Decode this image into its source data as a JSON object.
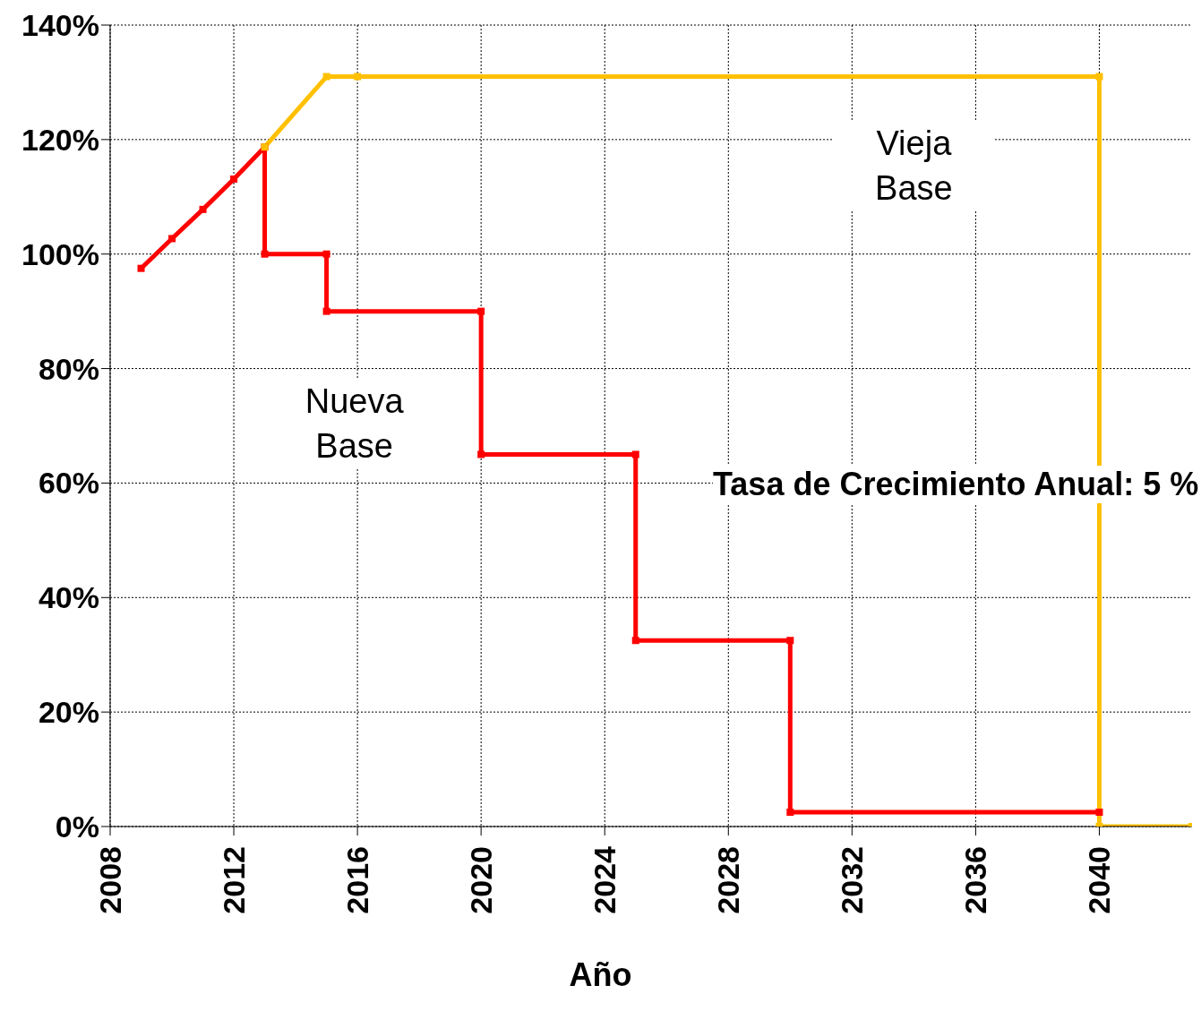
{
  "chart_data": {
    "type": "line",
    "xlabel": "Año",
    "xlim": [
      2008,
      2043
    ],
    "xticks": [
      2008,
      2012,
      2016,
      2020,
      2024,
      2028,
      2032,
      2036,
      2040
    ],
    "ylim": [
      0,
      140
    ],
    "yticks": [
      {
        "value": 0,
        "label": "0%"
      },
      {
        "value": 20,
        "label": "20%"
      },
      {
        "value": 40,
        "label": "40%"
      },
      {
        "value": 60,
        "label": "60%"
      },
      {
        "value": 80,
        "label": "80%"
      },
      {
        "value": 100,
        "label": "100%"
      },
      {
        "value": 120,
        "label": "120%"
      },
      {
        "value": 140,
        "label": "140%"
      }
    ],
    "grid": true,
    "marker": "square",
    "line_style": "solid",
    "series": [
      {
        "name": "Vieja Base",
        "color": "#ffc000",
        "x": [
          2013,
          2015,
          2016,
          2040,
          2040,
          2043
        ],
        "values": [
          118.7,
          131,
          131,
          131,
          0,
          0
        ]
      },
      {
        "name": "Nueva Base",
        "color": "#ff0000",
        "x": [
          2009,
          2010,
          2011,
          2012,
          2013,
          2013,
          2015,
          2015,
          2020,
          2020,
          2025,
          2025,
          2030,
          2030,
          2040
        ],
        "values": [
          97.5,
          102.7,
          107.8,
          113.1,
          118.7,
          100,
          100,
          90,
          90,
          65,
          65,
          32.5,
          32.5,
          2.5,
          2.5
        ]
      }
    ],
    "annotations": [
      "Tasa de Crecimiento Anual: 5 %"
    ]
  }
}
